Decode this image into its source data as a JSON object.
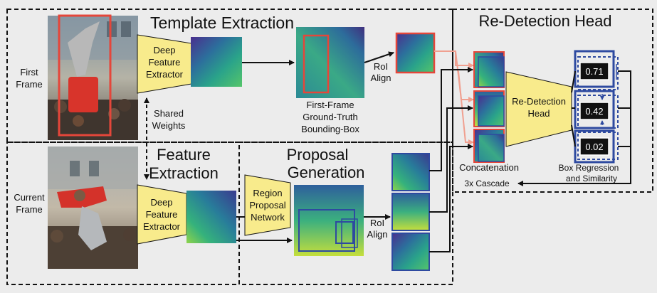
{
  "sections": {
    "template_extraction": "Template Extraction",
    "redetection_head": "Re-Detection Head",
    "feature_extraction_line1": "Feature",
    "feature_extraction_line2": "Extraction",
    "proposal_generation_line1": "Proposal",
    "proposal_generation_line2": "Generation"
  },
  "row_labels": {
    "first_frame_line1": "First",
    "first_frame_line2": "Frame",
    "current_frame_line1": "Current",
    "current_frame_line2": "Frame"
  },
  "blocks": {
    "extractor_top": [
      "Deep",
      "Feature",
      "Extractor"
    ],
    "extractor_bottom": [
      "Deep",
      "Feature",
      "Extractor"
    ],
    "rpn": [
      "Region",
      "Proposal",
      "Network"
    ],
    "head": [
      "Re-Detection",
      "Head"
    ]
  },
  "labels": {
    "shared_weights": [
      "Shared",
      "Weights"
    ],
    "roi_align_top": [
      "RoI",
      "Align"
    ],
    "roi_align_bottom": [
      "RoI",
      "Align"
    ],
    "gt_box": [
      "First-Frame",
      "Ground-Truth",
      "Bounding-Box"
    ],
    "concatenation": "Concatenation",
    "box_regression": [
      "Box Regression",
      "and Similarity"
    ],
    "cascade": "3x Cascade"
  },
  "scores": [
    "0.71",
    "0.42",
    "0.02"
  ],
  "colors": {
    "accent_blue": "#2e4aa0",
    "gt_red": "#e5463a",
    "block_yellow": "#f8eb8c",
    "background": "#ececec"
  }
}
